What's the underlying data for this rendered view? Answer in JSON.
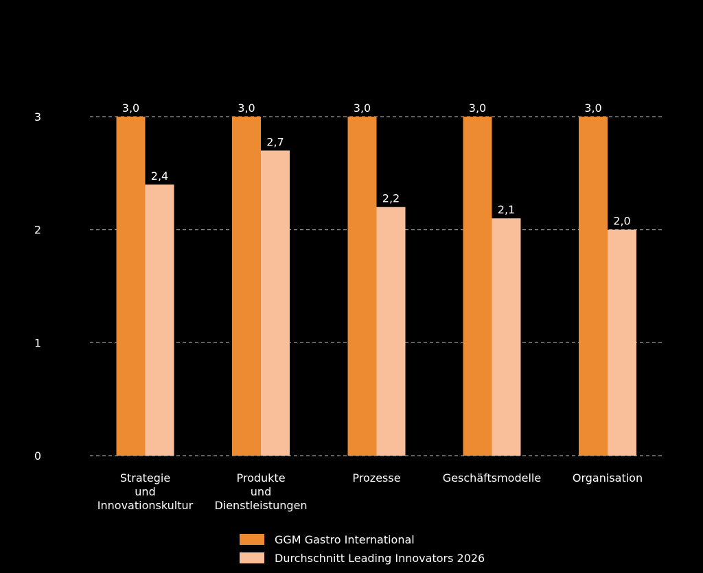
{
  "chart_data": {
    "type": "bar",
    "title": "",
    "xlabel": "",
    "ylabel": "",
    "ylim": [
      0,
      3
    ],
    "yticks": [
      0,
      1,
      2,
      3
    ],
    "grid": true,
    "legend_position": "bottom",
    "categories": [
      [
        "Strategie",
        "und",
        "Innovationskultur"
      ],
      [
        "Produkte",
        "und",
        "Dienstleistungen"
      ],
      [
        "Prozesse"
      ],
      [
        "Geschäftsmodelle"
      ],
      [
        "Organisation"
      ]
    ],
    "series": [
      {
        "name": "GGM Gastro International",
        "color": "#ed8b33",
        "values": [
          3.0,
          3.0,
          3.0,
          3.0,
          3.0
        ],
        "labels": [
          "3,0",
          "3,0",
          "3,0",
          "3,0",
          "3,0"
        ]
      },
      {
        "name": "Durchschnitt Leading Innovators 2026",
        "color": "#f9bf9b",
        "values": [
          2.4,
          2.7,
          2.2,
          2.1,
          2.0
        ],
        "labels": [
          "2,4",
          "2,7",
          "2,2",
          "2,1",
          "2,0"
        ]
      }
    ]
  }
}
